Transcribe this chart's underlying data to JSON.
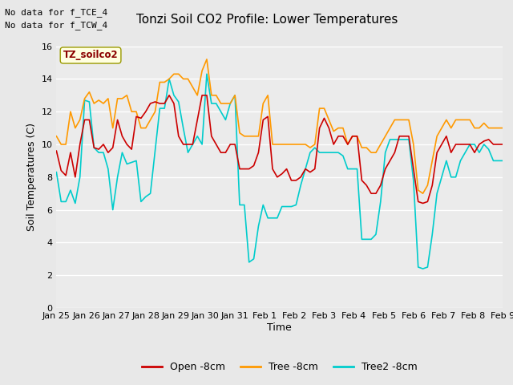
{
  "title": "Tonzi Soil CO2 Profile: Lower Temperatures",
  "ylabel": "Soil Temperatures (C)",
  "xlabel": "Time",
  "annotation_line1": "No data for f_TCE_4",
  "annotation_line2": "No data for f_TCW_4",
  "legend_label": "TZ_soilco2",
  "ylim": [
    0,
    16
  ],
  "yticks": [
    0,
    2,
    4,
    6,
    8,
    10,
    12,
    14,
    16
  ],
  "fig_bg_color": "#e8e8e8",
  "plot_bg_color": "#ebebeb",
  "line_colors": {
    "open": "#cc0000",
    "tree": "#ff9900",
    "tree2": "#00cccc"
  },
  "line_labels": [
    "Open -8cm",
    "Tree -8cm",
    "Tree2 -8cm"
  ],
  "xtick_labels": [
    "Jan 25",
    "Jan 26",
    "Jan 27",
    "Jan 28",
    "Jan 29",
    "Jan 30",
    "Jan 31",
    "Feb 1",
    "Feb 2",
    "Feb 3",
    "Feb 4",
    "Feb 5",
    "Feb 6",
    "Feb 7",
    "Feb 8",
    "Feb 9"
  ],
  "open_8cm": [
    9.6,
    8.4,
    8.1,
    9.5,
    8.0,
    10.0,
    11.5,
    11.5,
    9.8,
    9.7,
    10.0,
    9.5,
    9.8,
    11.5,
    10.5,
    10.0,
    9.7,
    11.7,
    11.6,
    12.0,
    12.5,
    12.6,
    12.5,
    12.5,
    13.0,
    12.5,
    10.5,
    10.0,
    10.0,
    10.0,
    11.5,
    13.0,
    13.0,
    10.5,
    10.0,
    9.5,
    9.5,
    10.0,
    10.0,
    8.5,
    8.5,
    8.5,
    8.7,
    9.5,
    11.5,
    11.7,
    8.5,
    8.0,
    8.2,
    8.5,
    7.8,
    7.8,
    8.0,
    8.5,
    8.3,
    8.5,
    11.0,
    11.6,
    11.0,
    10.0,
    10.5,
    10.5,
    10.0,
    10.5,
    10.5,
    7.8,
    7.5,
    7.0,
    7.0,
    7.5,
    8.5,
    9.0,
    9.5,
    10.5,
    10.5,
    10.5,
    8.5,
    6.5,
    6.4,
    6.5,
    7.5,
    9.5,
    10.0,
    10.5,
    9.5,
    10.0,
    10.0,
    10.0,
    10.0,
    9.5,
    10.0,
    10.2,
    10.3,
    10.0,
    10.0,
    10.0
  ],
  "tree_8cm": [
    10.5,
    10.0,
    10.0,
    12.0,
    11.0,
    11.5,
    12.8,
    13.2,
    12.5,
    12.7,
    12.5,
    12.8,
    11.0,
    12.8,
    12.8,
    13.0,
    12.0,
    12.0,
    11.0,
    11.0,
    11.5,
    12.0,
    13.8,
    13.8,
    14.0,
    14.3,
    14.3,
    14.0,
    14.0,
    13.5,
    13.0,
    14.5,
    15.2,
    13.0,
    13.0,
    12.5,
    12.5,
    12.5,
    13.0,
    10.7,
    10.5,
    10.5,
    10.5,
    10.5,
    12.5,
    13.0,
    10.0,
    10.0,
    10.0,
    10.0,
    10.0,
    10.0,
    10.0,
    10.0,
    9.8,
    10.0,
    12.2,
    12.2,
    11.5,
    10.8,
    11.0,
    11.0,
    10.0,
    10.5,
    10.5,
    9.8,
    9.8,
    9.5,
    9.5,
    10.0,
    10.5,
    11.0,
    11.5,
    11.5,
    11.5,
    11.5,
    10.0,
    7.2,
    7.0,
    7.5,
    9.0,
    10.5,
    11.0,
    11.5,
    11.0,
    11.5,
    11.5,
    11.5,
    11.5,
    11.0,
    11.0,
    11.3,
    11.0,
    11.0,
    11.0,
    11.0
  ],
  "tree2_8cm": [
    8.3,
    6.5,
    6.5,
    7.2,
    6.4,
    8.0,
    12.7,
    12.6,
    9.8,
    9.5,
    9.5,
    8.5,
    6.0,
    8.0,
    9.5,
    8.8,
    8.9,
    9.0,
    6.5,
    6.8,
    7.0,
    9.6,
    12.2,
    12.2,
    14.0,
    13.0,
    12.6,
    11.0,
    9.5,
    10.0,
    10.5,
    10.0,
    14.3,
    12.5,
    12.5,
    12.0,
    11.5,
    12.5,
    13.0,
    6.3,
    6.3,
    2.8,
    3.0,
    5.0,
    6.3,
    5.5,
    5.5,
    5.5,
    6.2,
    6.2,
    6.2,
    6.3,
    7.5,
    8.5,
    9.5,
    9.8,
    9.5,
    9.5,
    9.5,
    9.5,
    9.5,
    9.3,
    8.5,
    8.5,
    8.5,
    4.2,
    4.2,
    4.2,
    4.5,
    6.5,
    9.5,
    10.3,
    10.3,
    10.3,
    10.3,
    10.3,
    7.8,
    2.5,
    2.4,
    2.5,
    4.5,
    7.0,
    8.0,
    9.0,
    8.0,
    8.0,
    9.0,
    9.5,
    10.0,
    10.0,
    9.5,
    10.0,
    9.7,
    9.0,
    9.0,
    9.0
  ]
}
